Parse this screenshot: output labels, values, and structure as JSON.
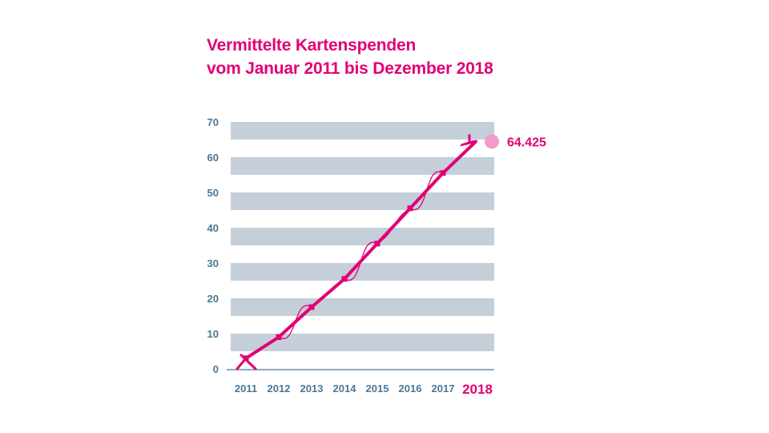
{
  "chart_data": {
    "type": "line",
    "title_lines": [
      "Vermittelte Kartenspenden",
      "vom Januar 2011 bis Dezember 2018"
    ],
    "xlabel": "",
    "ylabel": "",
    "ylim": [
      0,
      70
    ],
    "yticks": [
      0,
      10,
      20,
      30,
      40,
      50,
      60,
      70
    ],
    "categories": [
      "2011",
      "2012",
      "2013",
      "2014",
      "2015",
      "2016",
      "2017",
      "2018"
    ],
    "highlight_category": "2018",
    "series": [
      {
        "x": [
          "2011",
          "2012",
          "2013",
          "2014",
          "2015",
          "2016",
          "2017",
          "2018"
        ],
        "values": [
          3,
          9,
          17.5,
          25.5,
          35.5,
          45.5,
          55.5,
          64.425
        ]
      }
    ],
    "annotation": {
      "text": "64.425",
      "value": 64.425
    },
    "grid": "horizontal bands",
    "colors": {
      "line": "#e20074",
      "band": "#c4cfd9",
      "axis_text": "#4d7694",
      "endpoint": "#f59ac8"
    }
  }
}
